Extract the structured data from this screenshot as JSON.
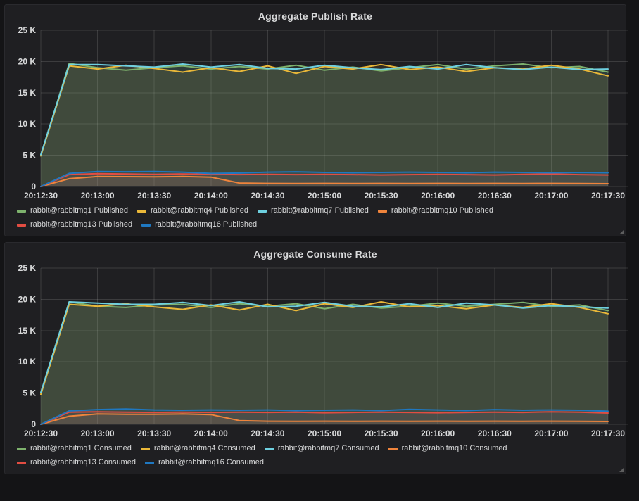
{
  "panels": [
    {
      "title": "Aggregate Publish Rate"
    },
    {
      "title": "Aggregate Consume Rate"
    }
  ],
  "palette": {
    "green": "#7EB26D",
    "yellow": "#EAB839",
    "cyan": "#6ED0E0",
    "orange": "#EF843C",
    "red": "#E24D42",
    "blue": "#1F78C1"
  },
  "chart_data": [
    {
      "type": "area",
      "title": "Aggregate Publish Rate",
      "xlabel": "",
      "ylabel": "",
      "ylim": [
        0,
        25000
      ],
      "grid": true,
      "legend_position": "bottom-left",
      "fill_opacity": 0.1,
      "x": [
        "20:12:30",
        "20:12:45",
        "20:13:00",
        "20:13:15",
        "20:13:30",
        "20:13:45",
        "20:14:00",
        "20:14:15",
        "20:14:30",
        "20:14:45",
        "20:15:00",
        "20:15:15",
        "20:15:30",
        "20:15:45",
        "20:16:00",
        "20:16:15",
        "20:16:30",
        "20:16:45",
        "20:17:00",
        "20:17:15",
        "20:17:30"
      ],
      "x_ticks": [
        "20:12:30",
        "20:13:00",
        "20:13:30",
        "20:14:00",
        "20:14:30",
        "20:15:00",
        "20:15:30",
        "20:16:00",
        "20:16:30",
        "20:17:00",
        "20:17:30"
      ],
      "y_ticks": [
        {
          "value": 0,
          "label": "0"
        },
        {
          "value": 5000,
          "label": "5 K"
        },
        {
          "value": 10000,
          "label": "10 K"
        },
        {
          "value": 15000,
          "label": "15 K"
        },
        {
          "value": 20000,
          "label": "20 K"
        },
        {
          "value": 25000,
          "label": "25 K"
        }
      ],
      "series": [
        {
          "name": "rabbit@rabbitmq1 Published",
          "color": "#7EB26D",
          "values": [
            5000,
            19700,
            19000,
            18600,
            19000,
            19300,
            18800,
            19200,
            18800,
            19400,
            18600,
            19100,
            18500,
            19000,
            19500,
            18800,
            19300,
            19600,
            19000,
            19200,
            18300
          ]
        },
        {
          "name": "rabbit@rabbitmq4 Published",
          "color": "#EAB839",
          "values": [
            4900,
            19300,
            18800,
            19400,
            18900,
            18300,
            19000,
            18400,
            19300,
            18100,
            19200,
            18800,
            19500,
            18700,
            19100,
            18400,
            19000,
            18800,
            19400,
            18800,
            17700
          ]
        },
        {
          "name": "rabbit@rabbitmq7 Published",
          "color": "#6ED0E0",
          "values": [
            5100,
            19500,
            19500,
            19300,
            19100,
            19600,
            19100,
            19500,
            18900,
            18800,
            19400,
            19000,
            18700,
            19200,
            18800,
            19500,
            19000,
            18700,
            19100,
            18700,
            18800
          ]
        },
        {
          "name": "rabbit@rabbitmq10 Published",
          "color": "#EF843C",
          "values": [
            0,
            1250,
            1600,
            1580,
            1550,
            1600,
            1500,
            550,
            500,
            480,
            500,
            470,
            490,
            480,
            500,
            470,
            490,
            480,
            500,
            470,
            450
          ]
        },
        {
          "name": "rabbit@rabbitmq13 Published",
          "color": "#E24D42",
          "values": [
            0,
            1900,
            2050,
            2000,
            1950,
            2000,
            1950,
            1900,
            1950,
            1900,
            1950,
            1900,
            1850,
            1900,
            1950,
            1900,
            1850,
            1950,
            2000,
            1900,
            1850
          ]
        },
        {
          "name": "rabbit@rabbitmq16 Published",
          "color": "#1F78C1",
          "values": [
            0,
            2100,
            2400,
            2350,
            2400,
            2300,
            2100,
            2150,
            2300,
            2350,
            2250,
            2200,
            2250,
            2300,
            2250,
            2200,
            2300,
            2250,
            2200,
            2250,
            2200
          ]
        }
      ]
    },
    {
      "type": "area",
      "title": "Aggregate Consume Rate",
      "xlabel": "",
      "ylabel": "",
      "ylim": [
        0,
        25000
      ],
      "grid": true,
      "legend_position": "bottom-left",
      "fill_opacity": 0.1,
      "x": [
        "20:12:30",
        "20:12:45",
        "20:13:00",
        "20:13:15",
        "20:13:30",
        "20:13:45",
        "20:14:00",
        "20:14:15",
        "20:14:30",
        "20:14:45",
        "20:15:00",
        "20:15:15",
        "20:15:30",
        "20:15:45",
        "20:16:00",
        "20:16:15",
        "20:16:30",
        "20:16:45",
        "20:17:00",
        "20:17:15",
        "20:17:30"
      ],
      "x_ticks": [
        "20:12:30",
        "20:13:00",
        "20:13:30",
        "20:14:00",
        "20:14:30",
        "20:15:00",
        "20:15:30",
        "20:16:00",
        "20:16:30",
        "20:17:00",
        "20:17:30"
      ],
      "y_ticks": [
        {
          "value": 0,
          "label": "0"
        },
        {
          "value": 5000,
          "label": "5 K"
        },
        {
          "value": 10000,
          "label": "10 K"
        },
        {
          "value": 15000,
          "label": "15 K"
        },
        {
          "value": 20000,
          "label": "20 K"
        },
        {
          "value": 25000,
          "label": "25 K"
        }
      ],
      "series": [
        {
          "name": "rabbit@rabbitmq1 Consumed",
          "color": "#7EB26D",
          "values": [
            5000,
            19600,
            18900,
            18700,
            19100,
            19200,
            18700,
            19300,
            18900,
            19300,
            18500,
            19200,
            18600,
            18900,
            19400,
            18900,
            19200,
            19500,
            18900,
            19100,
            18200
          ]
        },
        {
          "name": "rabbit@rabbitmq4 Consumed",
          "color": "#EAB839",
          "values": [
            4800,
            19200,
            18900,
            19300,
            18800,
            18400,
            19100,
            18300,
            19200,
            18200,
            19300,
            18700,
            19600,
            18800,
            19000,
            18500,
            19100,
            18700,
            19300,
            18700,
            17700
          ]
        },
        {
          "name": "rabbit@rabbitmq7 Consumed",
          "color": "#6ED0E0",
          "values": [
            5100,
            19600,
            19400,
            19200,
            19200,
            19500,
            19000,
            19600,
            18800,
            18900,
            19500,
            18900,
            18800,
            19300,
            18700,
            19400,
            19100,
            18600,
            19000,
            18800,
            18600
          ]
        },
        {
          "name": "rabbit@rabbitmq10 Consumed",
          "color": "#EF843C",
          "values": [
            0,
            1300,
            1650,
            1600,
            1600,
            1650,
            1550,
            600,
            500,
            480,
            500,
            470,
            490,
            480,
            500,
            470,
            490,
            480,
            500,
            470,
            450
          ]
        },
        {
          "name": "rabbit@rabbitmq13 Consumed",
          "color": "#E24D42",
          "values": [
            0,
            1950,
            2000,
            1950,
            1900,
            1950,
            1900,
            1950,
            1900,
            1950,
            1850,
            1900,
            1950,
            1900,
            1850,
            1900,
            1950,
            1900,
            2000,
            1950,
            1800
          ]
        },
        {
          "name": "rabbit@rabbitmq16 Consumed",
          "color": "#1F78C1",
          "values": [
            0,
            2150,
            2350,
            2450,
            2300,
            2250,
            2300,
            2250,
            2300,
            2200,
            2250,
            2300,
            2200,
            2400,
            2300,
            2200,
            2350,
            2250,
            2300,
            2250,
            2100
          ]
        }
      ]
    }
  ]
}
